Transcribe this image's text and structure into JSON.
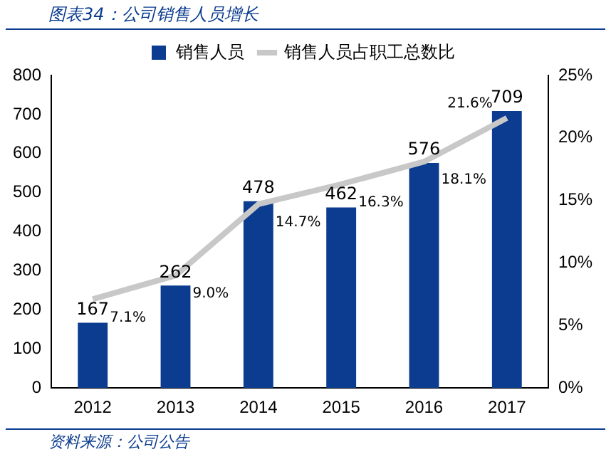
{
  "chart_data": {
    "type": "bar",
    "title": "图表34：公司销售人员增长",
    "categories": [
      "2012",
      "2013",
      "2014",
      "2015",
      "2016",
      "2017"
    ],
    "series": [
      {
        "name": "销售人员",
        "color": "#0b3c8f",
        "values": [
          167,
          262,
          478,
          462,
          576,
          709
        ]
      },
      {
        "name": "销售人员占职工总数比",
        "type": "line",
        "axis": "y2",
        "color": "#c8c8c8",
        "values": [
          7.1,
          9.0,
          14.7,
          16.3,
          18.1,
          21.6
        ],
        "value_labels": [
          "7.1%",
          "9.0%",
          "14.7%",
          "16.3%",
          "18.1%",
          "21.6%"
        ]
      }
    ],
    "ylim": [
      0,
      800
    ],
    "yticks": [
      0,
      100,
      200,
      300,
      400,
      500,
      600,
      700,
      800
    ],
    "y2lim": [
      0,
      25
    ],
    "y2ticks": [
      {
        "value": 0,
        "label": "0%"
      },
      {
        "value": 5,
        "label": "5%"
      },
      {
        "value": 10,
        "label": "10%"
      },
      {
        "value": 15,
        "label": "15%"
      },
      {
        "value": 20,
        "label": "20%"
      },
      {
        "value": 25,
        "label": "25%"
      }
    ],
    "data_labels": true,
    "legend": "top",
    "grid": false,
    "marker": "none",
    "annotations": [
      "资料来源：公司公告"
    ]
  }
}
